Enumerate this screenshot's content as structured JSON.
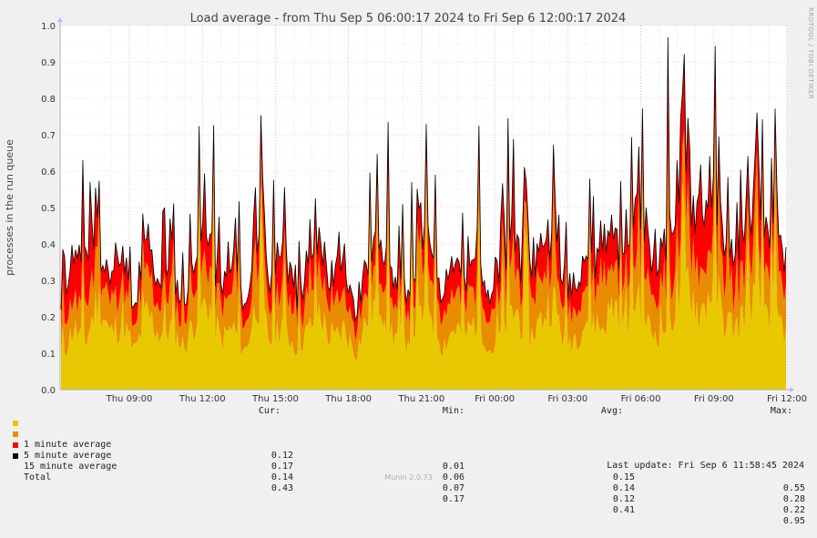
{
  "chart_data": {
    "type": "area",
    "title": "Load average - from Thu Sep  5 06:00:17 2024 to Fri Sep  6 12:00:17 2024",
    "ylabel": "processes in the run queue",
    "xlabel": "",
    "ylim": [
      0,
      1.0
    ],
    "yticks": [
      "0.0",
      "0.1",
      "0.2",
      "0.3",
      "0.4",
      "0.5",
      "0.6",
      "0.7",
      "0.8",
      "0.9",
      "1.0"
    ],
    "xticks": [
      "Thu 09:00",
      "Thu 12:00",
      "Thu 15:00",
      "Thu 18:00",
      "Thu 21:00",
      "Fri 00:00",
      "Fri 03:00",
      "Fri 06:00",
      "Fri 09:00",
      "Fri 12:00"
    ],
    "grid": true,
    "stacked": true,
    "series": [
      {
        "name": "1 minute average",
        "color": "#e8c800",
        "values": [
          0.1,
          0.2,
          0.15,
          0.3,
          0.18,
          0.22,
          0.12,
          0.25,
          0.18,
          0.2,
          0.14,
          0.24,
          0.28,
          0.16,
          0.2,
          0.12,
          0.3,
          0.16,
          0.22,
          0.14,
          0.18,
          0.26,
          0.15,
          0.2,
          0.12,
          0.24,
          0.3,
          0.18,
          0.16,
          0.22,
          0.28,
          0.14,
          0.2,
          0.18,
          0.24,
          0.12,
          0.2,
          0.26,
          0.16,
          0.22,
          0.3,
          0.15,
          0.18,
          0.24,
          0.2,
          0.28,
          0.22,
          0.32,
          0.18,
          0.2,
          0.26,
          0.36,
          0.24,
          0.34,
          0.22,
          0.2,
          0.3,
          0.28,
          0.25,
          0.18
        ]
      },
      {
        "name": "5 minute average",
        "color": "#e88c00",
        "values": [
          0.08,
          0.1,
          0.12,
          0.12,
          0.1,
          0.12,
          0.08,
          0.12,
          0.1,
          0.1,
          0.08,
          0.12,
          0.14,
          0.1,
          0.12,
          0.08,
          0.16,
          0.1,
          0.12,
          0.1,
          0.1,
          0.14,
          0.1,
          0.12,
          0.08,
          0.12,
          0.14,
          0.1,
          0.1,
          0.12,
          0.14,
          0.1,
          0.12,
          0.1,
          0.12,
          0.08,
          0.12,
          0.14,
          0.1,
          0.12,
          0.16,
          0.1,
          0.1,
          0.12,
          0.12,
          0.14,
          0.12,
          0.16,
          0.12,
          0.12,
          0.14,
          0.18,
          0.14,
          0.16,
          0.14,
          0.12,
          0.16,
          0.14,
          0.14,
          0.12
        ]
      },
      {
        "name": "15 minute average",
        "color": "#ff0000",
        "values": [
          0.08,
          0.1,
          0.18,
          0.08,
          0.06,
          0.1,
          0.06,
          0.1,
          0.08,
          0.12,
          0.06,
          0.1,
          0.12,
          0.08,
          0.1,
          0.06,
          0.14,
          0.1,
          0.12,
          0.08,
          0.1,
          0.12,
          0.08,
          0.1,
          0.06,
          0.1,
          0.12,
          0.08,
          0.08,
          0.1,
          0.12,
          0.06,
          0.1,
          0.08,
          0.12,
          0.06,
          0.1,
          0.12,
          0.08,
          0.1,
          0.14,
          0.08,
          0.1,
          0.12,
          0.1,
          0.14,
          0.12,
          0.16,
          0.1,
          0.12,
          0.16,
          0.22,
          0.14,
          0.18,
          0.12,
          0.1,
          0.16,
          0.14,
          0.12,
          0.1
        ]
      },
      {
        "name": "Total",
        "color": "#000000",
        "values": [
          0.26,
          0.4,
          0.45,
          0.5,
          0.34,
          0.44,
          0.26,
          0.47,
          0.36,
          0.42,
          0.28,
          0.46,
          0.54,
          0.34,
          0.42,
          0.26,
          0.6,
          0.36,
          0.46,
          0.32,
          0.38,
          0.52,
          0.33,
          0.42,
          0.26,
          0.46,
          0.56,
          0.36,
          0.34,
          0.44,
          0.54,
          0.3,
          0.42,
          0.36,
          0.48,
          0.26,
          0.42,
          0.52,
          0.34,
          0.44,
          0.6,
          0.33,
          0.38,
          0.48,
          0.42,
          0.56,
          0.46,
          0.64,
          0.4,
          0.44,
          0.56,
          0.76,
          0.52,
          0.68,
          0.48,
          0.42,
          0.62,
          0.56,
          0.51,
          0.4
        ]
      }
    ]
  },
  "watermark": "RRDTOOL / TOBI OETIKER",
  "legend": {
    "headers": {
      "cur": "Cur:",
      "min": "Min:",
      "avg": "Avg:",
      "max": "Max:"
    },
    "rows": [
      {
        "label": "1 minute average",
        "color": "#e8c800",
        "cur": "0.12",
        "min": "0.01",
        "avg": "0.15",
        "max": "0.55"
      },
      {
        "label": "5 minute average",
        "color": "#e88c00",
        "cur": "0.17",
        "min": "0.06",
        "avg": "0.14",
        "max": "0.28"
      },
      {
        "label": "15 minute average",
        "color": "#ff0000",
        "cur": "0.14",
        "min": "0.07",
        "avg": "0.12",
        "max": "0.22"
      },
      {
        "label": "Total",
        "color": "#000000",
        "cur": "0.43",
        "min": "0.17",
        "avg": "0.41",
        "max": "0.95"
      }
    ]
  },
  "last_update": "Last update: Fri Sep  6 11:58:45 2024",
  "version": "Munin 2.0.73"
}
